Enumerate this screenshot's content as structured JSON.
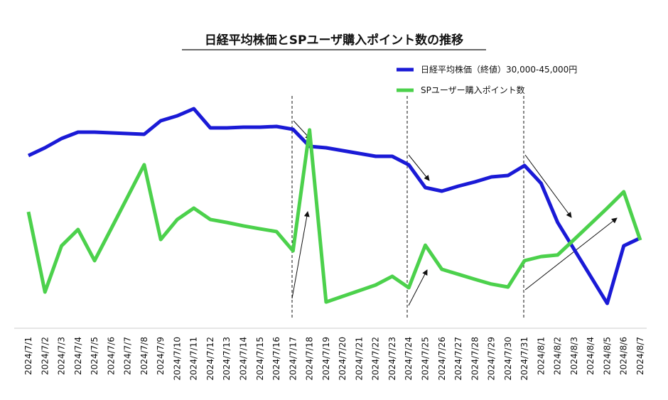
{
  "chart_data": {
    "type": "line",
    "title": "日経平均株価とSPユーザ購入ポイント数の推移",
    "categories": [
      "2024/7/1",
      "2024/7/2",
      "2024/7/3",
      "2024/7/4",
      "2024/7/5",
      "2024/7/6",
      "2024/7/7",
      "2024/7/8",
      "2024/7/9",
      "2024/7/10",
      "2024/7/11",
      "2024/7/12",
      "2024/7/13",
      "2024/7/14",
      "2024/7/15",
      "2024/7/16",
      "2024/7/17",
      "2024/7/18",
      "2024/7/19",
      "2024/7/20",
      "2024/7/21",
      "2024/7/22",
      "2024/7/23",
      "2024/7/24",
      "2024/7/25",
      "2024/7/26",
      "2024/7/27",
      "2024/7/28",
      "2024/7/29",
      "2024/7/30",
      "2024/7/31",
      "2024/8/1",
      "2024/8/2",
      "2024/8/3",
      "2024/8/4",
      "2024/8/5",
      "2024/8/6",
      "2024/8/7"
    ],
    "series": [
      {
        "name": "日経平均株価（終値）30,000-45,000円",
        "color": "#1a1ad6",
        "values": [
          39640,
          40080,
          40600,
          40960,
          40960,
          40920,
          40880,
          40840,
          41600,
          41880,
          42280,
          41200,
          41200,
          41240,
          41240,
          41280,
          41120,
          40160,
          40080,
          39920,
          39760,
          39600,
          39600,
          39120,
          37840,
          37640,
          37920,
          38160,
          38440,
          38520,
          39080,
          38080,
          35880,
          34360,
          32840,
          31320,
          34560,
          35000
        ]
      },
      {
        "name": "SPユーザー購入ポイント数",
        "color": "#4cd14c",
        "axis": "y2",
        "values": [
          50.6,
          15.3,
          35.6,
          42.8,
          29.1,
          43.1,
          57.2,
          71.3,
          38.4,
          47.2,
          52.2,
          47.2,
          45.9,
          44.4,
          43.1,
          41.9,
          33.4,
          86.6,
          10.9,
          13.4,
          15.9,
          18.4,
          22.2,
          17.2,
          35.9,
          25.3,
          23.1,
          20.9,
          18.8,
          17.5,
          29.1,
          30.9,
          31.6,
          38.4,
          45.3,
          52.2,
          59.4,
          38.1
        ]
      }
    ],
    "ylim": [
      30000,
      42800
    ],
    "y2lim": [
      0,
      100
    ],
    "legend": "top-right"
  }
}
